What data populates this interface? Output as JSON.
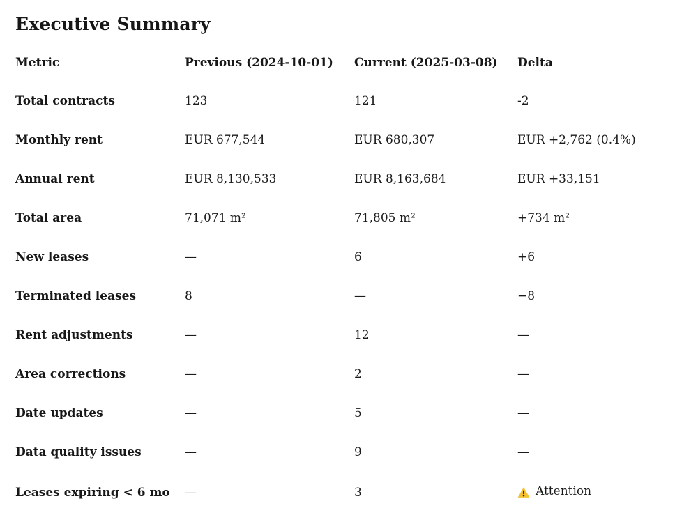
{
  "page": {
    "title": "Executive Summary"
  },
  "colors": {
    "background": "#ffffff",
    "text": "#1b1b1b",
    "divider": "#d9d9d9",
    "warning_yellow": "#F2C230",
    "warning_glyph": "#1b1b1b"
  },
  "table": {
    "columns": [
      "Metric",
      "Previous (2024-10-01)",
      "Current (2025-03-08)",
      "Delta"
    ],
    "rows": [
      {
        "metric": "Total contracts",
        "previous": "123",
        "current": "121",
        "delta": "-2"
      },
      {
        "metric": "Monthly rent",
        "previous": "EUR 677,544",
        "current": "EUR 680,307",
        "delta": "EUR +2,762 (0.4%)"
      },
      {
        "metric": "Annual rent",
        "previous": "EUR 8,130,533",
        "current": "EUR 8,163,684",
        "delta": "EUR +33,151"
      },
      {
        "metric": "Total area",
        "previous": "71,071 m²",
        "current": "71,805 m²",
        "delta": "+734 m²"
      },
      {
        "metric": "New leases",
        "previous": "—",
        "current": "6",
        "delta": "+6"
      },
      {
        "metric": "Terminated leases",
        "previous": "8",
        "current": "—",
        "delta": "−8"
      },
      {
        "metric": "Rent adjustments",
        "previous": "—",
        "current": "12",
        "delta": "—"
      },
      {
        "metric": "Area corrections",
        "previous": "—",
        "current": "2",
        "delta": "—"
      },
      {
        "metric": "Date updates",
        "previous": "—",
        "current": "5",
        "delta": "—"
      },
      {
        "metric": "Data quality issues",
        "previous": "—",
        "current": "9",
        "delta": "—"
      },
      {
        "metric": "Leases expiring < 6 mo",
        "previous": "—",
        "current": "3",
        "delta": "Attention",
        "warning": true
      }
    ],
    "warning_icon": "warning-triangle-icon"
  }
}
